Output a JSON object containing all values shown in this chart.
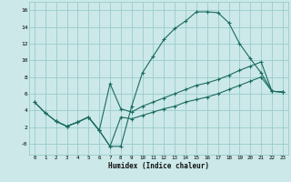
{
  "xlabel": "Humidex (Indice chaleur)",
  "bg_color": "#cce8e8",
  "grid_color": "#99cccc",
  "line_color": "#1a6b60",
  "xlim": [
    -0.5,
    23.5
  ],
  "ylim": [
    -1.3,
    17.0
  ],
  "xticks": [
    0,
    1,
    2,
    3,
    4,
    5,
    6,
    7,
    8,
    9,
    10,
    11,
    12,
    13,
    14,
    15,
    16,
    17,
    18,
    19,
    20,
    21,
    22,
    23
  ],
  "yticks": [
    0,
    2,
    4,
    6,
    8,
    10,
    12,
    14,
    16
  ],
  "ytick_labels": [
    "-0",
    "2",
    "4",
    "6",
    "8",
    "10",
    "12",
    "14",
    "16"
  ],
  "curve1_x": [
    0,
    1,
    2,
    3,
    4,
    5,
    6,
    7,
    8,
    9,
    10,
    11,
    12,
    13,
    14,
    15,
    16,
    17,
    18,
    19,
    20,
    21,
    22,
    23
  ],
  "curve1_y": [
    5.0,
    3.7,
    2.7,
    2.1,
    2.6,
    3.2,
    1.6,
    -0.3,
    -0.3,
    4.5,
    8.5,
    10.5,
    12.5,
    13.8,
    14.7,
    15.8,
    15.8,
    15.7,
    14.5,
    12.0,
    10.2,
    8.5,
    6.3,
    6.2
  ],
  "curve2_x": [
    0,
    1,
    2,
    3,
    4,
    5,
    6,
    7,
    8,
    9,
    10,
    11,
    12,
    13,
    14,
    15,
    16,
    17,
    18,
    19,
    20,
    21,
    22,
    23
  ],
  "curve2_y": [
    5.0,
    3.7,
    2.7,
    2.1,
    2.6,
    3.2,
    1.6,
    7.2,
    4.2,
    3.8,
    4.5,
    5.0,
    5.5,
    6.0,
    6.5,
    7.0,
    7.3,
    7.7,
    8.2,
    8.8,
    9.3,
    9.8,
    6.3,
    6.2
  ],
  "curve3_x": [
    2,
    3,
    4,
    5,
    6,
    7,
    8,
    9,
    10,
    11,
    12,
    13,
    14,
    15,
    16,
    17,
    18,
    19,
    20,
    21,
    22,
    23
  ],
  "curve3_y": [
    2.7,
    2.1,
    2.6,
    3.2,
    1.6,
    -0.3,
    3.2,
    3.0,
    3.4,
    3.8,
    4.2,
    4.5,
    5.0,
    5.3,
    5.6,
    6.0,
    6.5,
    7.0,
    7.5,
    8.0,
    6.3,
    6.2
  ]
}
